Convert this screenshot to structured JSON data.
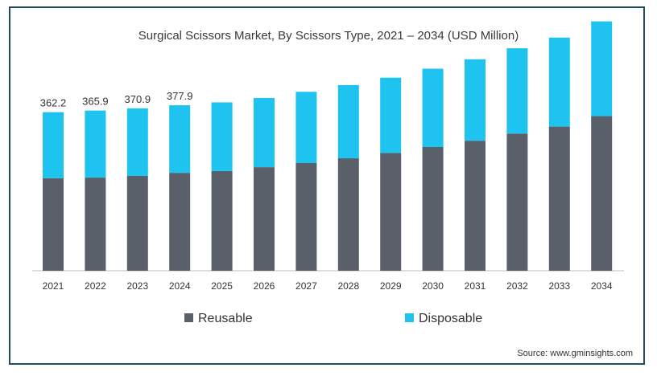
{
  "title": "Surgical Scissors Market, By Scissors Type, 2021 – 2034 (USD Million)",
  "source": "Source: www.gminsights.com",
  "colors": {
    "reusable": "#59606a",
    "disposable": "#1ec3f0",
    "axis": "#bfbfbf",
    "border": "#1f4e5c"
  },
  "chart_data": {
    "type": "bar",
    "stacked": true,
    "categories": [
      "2021",
      "2022",
      "2023",
      "2024",
      "2025",
      "2026",
      "2027",
      "2028",
      "2029",
      "2030",
      "2031",
      "2032",
      "2033",
      "2034"
    ],
    "series": [
      {
        "name": "Reusable",
        "values": [
          211.4,
          212.7,
          216.6,
          223.6,
          227.6,
          236.5,
          245.9,
          256.8,
          268.9,
          282.6,
          297.0,
          313.3,
          329.2,
          353.1
        ]
      },
      {
        "name": "Disposable",
        "values": [
          150.8,
          153.2,
          154.3,
          154.3,
          156.9,
          158.1,
          162.8,
          167.2,
          172.0,
          178.8,
          186.0,
          194.8,
          203.3,
          216.4
        ]
      }
    ],
    "totals_labels": [
      "362.2",
      "365.9",
      "370.9",
      "377.9"
    ],
    "ylim": [
      0,
      600
    ],
    "legend_position": "bottom",
    "grid": false
  }
}
